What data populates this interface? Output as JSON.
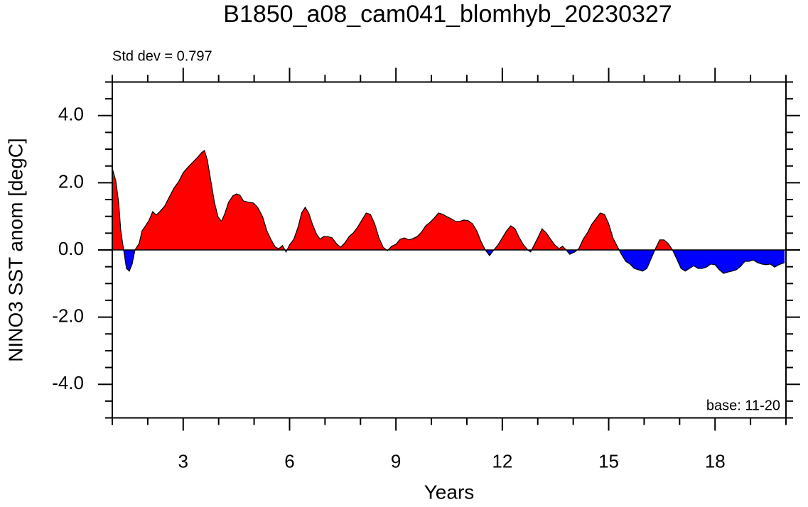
{
  "chart_data": {
    "type": "area",
    "title": "B1850_a08_cam041_blomhyb_20230327",
    "annotations": [
      "Std dev = 0.797",
      "base: 11-20"
    ],
    "xlabel": "Years",
    "ylabel": "NINO3 SST anom [degC]",
    "xlim": [
      1,
      20
    ],
    "ylim": [
      -5,
      5
    ],
    "xticks": [
      3,
      6,
      9,
      12,
      15,
      18
    ],
    "xminorticks": [
      1,
      2,
      4,
      5,
      7,
      8,
      10,
      11,
      13,
      14,
      16,
      17,
      19,
      20
    ],
    "yticks": [
      {
        "value": -4,
        "label": "-4.0"
      },
      {
        "value": -2,
        "label": "-2.0"
      },
      {
        "value": 0,
        "label": "0.0"
      },
      {
        "value": 2,
        "label": "2.0"
      },
      {
        "value": 4,
        "label": "4.0"
      }
    ],
    "yminorticks": [
      -5,
      -4.5,
      -3.5,
      -3,
      -2.5,
      -1.5,
      -1,
      -0.5,
      0.5,
      1,
      1.5,
      2.5,
      3,
      3.5,
      4.5,
      5
    ],
    "reference_line": 0,
    "above_color": "#ff0000",
    "below_color": "#0000ff",
    "x": [
      1.0,
      1.1,
      1.18,
      1.24,
      1.32,
      1.4,
      1.48,
      1.56,
      1.64,
      1.76,
      1.84,
      1.94,
      2.04,
      2.14,
      2.24,
      2.34,
      2.48,
      2.6,
      2.74,
      2.88,
      3.0,
      3.14,
      3.28,
      3.4,
      3.52,
      3.6,
      3.68,
      3.78,
      3.88,
      3.98,
      4.08,
      4.18,
      4.28,
      4.4,
      4.5,
      4.6,
      4.7,
      4.84,
      4.98,
      5.1,
      5.24,
      5.36,
      5.48,
      5.6,
      5.7,
      5.8,
      5.9,
      6.0,
      6.12,
      6.24,
      6.34,
      6.44,
      6.54,
      6.64,
      6.76,
      6.86,
      6.96,
      7.08,
      7.2,
      7.32,
      7.44,
      7.56,
      7.68,
      7.8,
      7.92,
      8.04,
      8.16,
      8.28,
      8.4,
      8.52,
      8.64,
      8.76,
      8.88,
      9.0,
      9.12,
      9.24,
      9.36,
      9.48,
      9.6,
      9.72,
      9.84,
      9.96,
      10.08,
      10.2,
      10.32,
      10.44,
      10.56,
      10.68,
      10.8,
      10.92,
      11.04,
      11.16,
      11.28,
      11.4,
      11.52,
      11.64,
      11.76,
      11.88,
      12.0,
      12.12,
      12.24,
      12.36,
      12.48,
      12.6,
      12.72,
      12.8,
      12.88,
      13.0,
      13.12,
      13.24,
      13.36,
      13.48,
      13.6,
      13.7,
      13.8,
      13.9,
      14.04,
      14.16,
      14.28,
      14.4,
      14.52,
      14.64,
      14.76,
      14.88,
      15.0,
      15.12,
      15.24,
      15.36,
      15.48,
      15.6,
      15.72,
      15.84,
      15.96,
      16.08,
      16.2,
      16.32,
      16.44,
      16.56,
      16.68,
      16.8,
      16.92,
      17.04,
      17.16,
      17.28,
      17.4,
      17.52,
      17.64,
      17.76,
      17.88,
      18.0,
      18.12,
      18.24,
      18.36,
      18.48,
      18.6,
      18.72,
      18.84,
      18.96,
      19.08,
      19.2,
      19.32,
      19.44,
      19.56,
      19.68,
      19.8,
      19.96
    ],
    "values": [
      2.43,
      2.05,
      1.4,
      0.57,
      0,
      -0.55,
      -0.63,
      -0.42,
      0,
      0.2,
      0.57,
      0.72,
      0.89,
      1.14,
      1.04,
      1.14,
      1.31,
      1.56,
      1.84,
      2.05,
      2.3,
      2.47,
      2.62,
      2.75,
      2.9,
      2.96,
      2.68,
      2.05,
      1.42,
      0.99,
      0.85,
      1.1,
      1.42,
      1.61,
      1.67,
      1.63,
      1.46,
      1.42,
      1.4,
      1.27,
      0.99,
      0.57,
      0.3,
      0.08,
      0.04,
      0.13,
      -0.06,
      0.15,
      0.32,
      0.68,
      1.1,
      1.27,
      1.1,
      0.78,
      0.47,
      0.32,
      0.4,
      0.4,
      0.36,
      0.19,
      0.08,
      0.21,
      0.4,
      0.51,
      0.68,
      0.89,
      1.1,
      1.06,
      0.78,
      0.36,
      0.08,
      -0.02,
      0.11,
      0.17,
      0.32,
      0.36,
      0.3,
      0.34,
      0.4,
      0.53,
      0.72,
      0.82,
      0.95,
      1.1,
      1.06,
      0.99,
      0.93,
      0.85,
      0.85,
      0.89,
      0.87,
      0.78,
      0.57,
      0.25,
      0,
      -0.17,
      0,
      0.15,
      0.36,
      0.57,
      0.72,
      0.63,
      0.36,
      0.15,
      0,
      -0.06,
      0.11,
      0.36,
      0.63,
      0.51,
      0.32,
      0.15,
      0.04,
      0.11,
      0,
      -0.13,
      -0.06,
      0.04,
      0.32,
      0.51,
      0.76,
      0.93,
      1.1,
      1.06,
      0.78,
      0.36,
      0.11,
      -0.13,
      -0.34,
      -0.42,
      -0.55,
      -0.59,
      -0.63,
      -0.55,
      -0.25,
      0.04,
      0.3,
      0.3,
      0.19,
      0,
      -0.27,
      -0.55,
      -0.63,
      -0.55,
      -0.47,
      -0.55,
      -0.55,
      -0.51,
      -0.42,
      -0.44,
      -0.59,
      -0.7,
      -0.66,
      -0.63,
      -0.59,
      -0.49,
      -0.34,
      -0.34,
      -0.3,
      -0.38,
      -0.42,
      -0.44,
      -0.42,
      -0.51,
      -0.44,
      -0.38
    ]
  }
}
